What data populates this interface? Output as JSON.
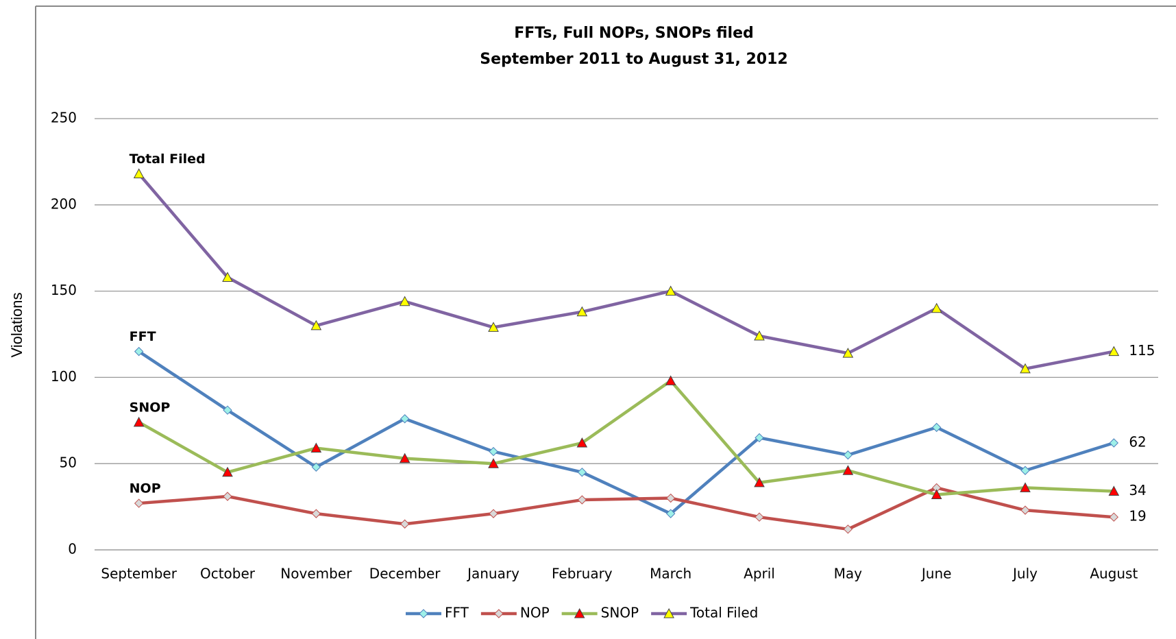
{
  "chart_data": {
    "type": "line",
    "title": "FFTs, Full NOPs, SNOPs filed",
    "subtitle": "September 2011 to August 31, 2012",
    "y_label": "Violations",
    "categories": [
      "September",
      "October",
      "November",
      "December",
      "January",
      "February",
      "March",
      "April",
      "May",
      "June",
      "July",
      "August"
    ],
    "series": [
      {
        "name": "FFT",
        "color": "#4f81bd",
        "marker": "diamond",
        "marker_color": "#9ef0e8",
        "values": [
          115,
          81,
          48,
          76,
          57,
          45,
          21,
          65,
          55,
          71,
          46,
          62
        ]
      },
      {
        "name": "NOP",
        "color": "#c0504d",
        "marker": "diamond",
        "marker_color": "#d9d9d9",
        "values": [
          27,
          31,
          21,
          15,
          21,
          29,
          30,
          19,
          12,
          36,
          23,
          19
        ]
      },
      {
        "name": "SNOP",
        "color": "#9bbb59",
        "marker": "triangle",
        "marker_color": "#ff0000",
        "values": [
          74,
          45,
          59,
          53,
          50,
          62,
          98,
          39,
          46,
          32,
          36,
          34
        ]
      },
      {
        "name": "Total Filed",
        "color": "#8064a2",
        "marker": "triangle",
        "marker_color": "#ffff00",
        "values": [
          218,
          158,
          130,
          144,
          129,
          138,
          150,
          124,
          114,
          140,
          105,
          115
        ]
      }
    ],
    "ylim": [
      0,
      250
    ],
    "yticks": [
      0,
      50,
      100,
      150,
      200,
      250
    ],
    "grid": true,
    "legend": "bottom"
  }
}
